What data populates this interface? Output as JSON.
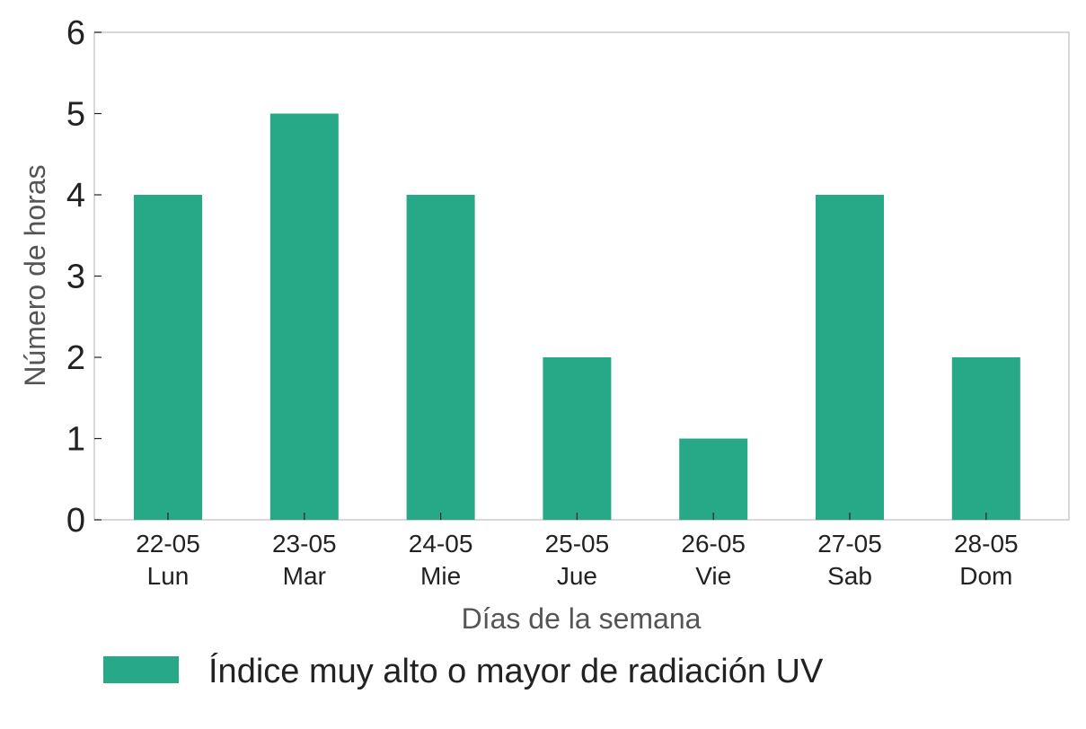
{
  "chart_data": {
    "type": "bar",
    "categories": [
      [
        "22-05",
        "Lun"
      ],
      [
        "23-05",
        "Mar"
      ],
      [
        "24-05",
        "Mie"
      ],
      [
        "25-05",
        "Jue"
      ],
      [
        "26-05",
        "Vie"
      ],
      [
        "27-05",
        "Sab"
      ],
      [
        "28-05",
        "Dom"
      ]
    ],
    "series": [
      {
        "name": "Índice muy alto o mayor de radiación UV",
        "values": [
          4,
          5,
          4,
          2,
          1,
          4,
          2
        ],
        "color": "#27a886"
      }
    ],
    "xlabel": "Días de la semana",
    "ylabel": "Número de horas",
    "ylim": [
      0,
      6
    ],
    "yticks": [
      0,
      1,
      2,
      3,
      4,
      5,
      6
    ],
    "grid": false,
    "legend_position": "bottom-center"
  }
}
